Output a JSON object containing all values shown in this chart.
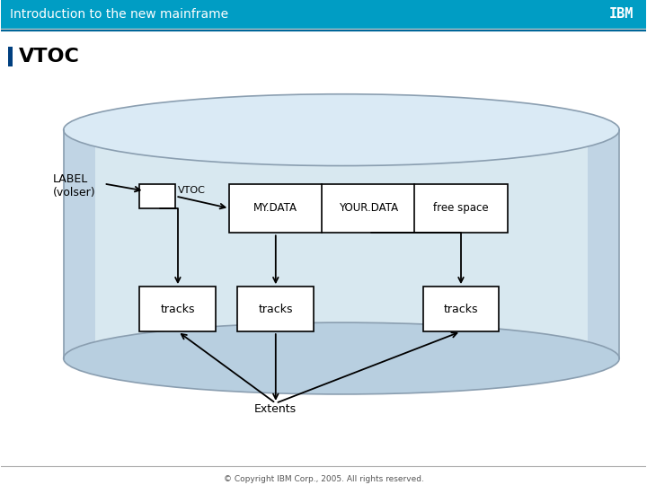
{
  "title_bar_text": "Introduction to the new mainframe",
  "title_bar_bg": "#009dc4",
  "title_bar_text_color": "#ffffff",
  "slide_bg": "#ffffff",
  "vtoc_title": "VTOC",
  "vtoc_title_color": "#000000",
  "vtoc_bar_color": "#003f7f",
  "copyright_text": "© Copyright IBM Corp., 2005. All rights reserved.",
  "ibm_logo_color": "#ffffff",
  "cylinder_top_color": "#c5d8e8",
  "cylinder_body_color": "#d8e8f0",
  "cylinder_shadow_color": "#b0c8dc",
  "label_text": "LABEL\n(volser)",
  "vtoc_label": "VTOC",
  "mydata_label": "MY.DATA",
  "yourdata_label": "YOUR.DATA",
  "freespace_label": "free space",
  "tracks_label": "tracks",
  "extents_label": "Extents",
  "box_bg": "#ffffff",
  "box_edge": "#000000"
}
